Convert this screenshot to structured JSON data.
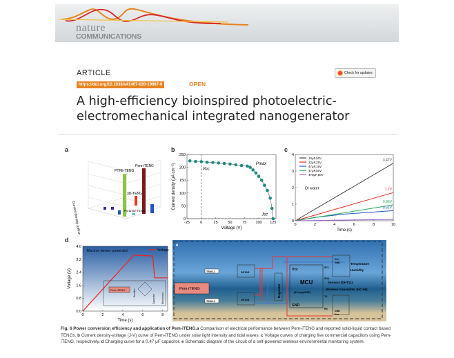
{
  "header": {
    "journal_line1": "nature",
    "journal_line2": "COMMUNICATIONS",
    "colors": {
      "orange": "#e8821e",
      "red": "#d9262c"
    }
  },
  "article": {
    "type": "ARTICLE",
    "doi": "https://doi.org/10.1038/s41467-020-19987-0",
    "access": "OPEN",
    "check_updates": "Check for updates",
    "title_line1": "A high-efficiency bioinspired photoelectric-",
    "title_line2": "electromechanical integrated nanogenerator"
  },
  "figure": {
    "panel_a": {
      "label": "a",
      "ylabel": "Current density (uA/cm²)",
      "bars": [
        {
          "name": "Pem-iTENG",
          "color": "#7a1a1a"
        },
        {
          "name": "PTFE-TENG",
          "color": "#8cc63f"
        },
        {
          "name": "3D-TENG",
          "color": "#ee3322"
        },
        {
          "name": "Pyramid-TENG",
          "color": "#6cc"
        }
      ]
    },
    "panel_d": {
      "label": "d",
      "annotation": "Electron device connected",
      "circuit": {
        "source": "Pem-iTENG",
        "rectifier": "Rectifier",
        "capacitor": "Capacitor",
        "electronics": "Electronics"
      }
    },
    "panel_e": {
      "label": "e",
      "source": "Pem-iTENG",
      "teng1": "TENG-1",
      "teng2": "TENG-2",
      "bridge": "DF10S",
      "regulator": "Regulator",
      "mcu": "MCU",
      "mcu_model": "(ATmega328P)",
      "vcc": "Vcc",
      "gnd": "GND",
      "scl": "SCL",
      "sda": "SDA",
      "tx": "TX",
      "rx": "RX",
      "sensor_vcc": "Vcc",
      "sensor_gnd": "GND",
      "sensors": "Sensors (DHT11)",
      "temperature": "Temperature",
      "humidity": "Humidity",
      "wireless": "Wireless transmitter (HC-06)",
      "tx_gnd": "GND",
      "tx_vcc": "Vcc"
    }
  },
  "chart_data": [
    {
      "panel": "b",
      "type": "scatter",
      "xlabel": "Voltage (V)",
      "ylabel": "Current density (μA cm⁻²)",
      "xlim": [
        -25,
        130
      ],
      "ylim": [
        0,
        250
      ],
      "xticks": [
        -25,
        0,
        25,
        50,
        75,
        100,
        125
      ],
      "yticks": [
        0,
        50,
        100,
        150,
        200,
        250
      ],
      "annotations": [
        "Voc",
        "Pmax",
        "Jsc"
      ],
      "x": [
        -20,
        -10,
        0,
        10,
        20,
        30,
        40,
        50,
        60,
        70,
        80,
        85,
        90,
        95,
        100,
        105,
        110,
        115,
        120,
        123,
        125
      ],
      "y": [
        225,
        223,
        222,
        220,
        219,
        217,
        215,
        213,
        210,
        207,
        205,
        200,
        190,
        178,
        165,
        150,
        130,
        110,
        80,
        40,
        0
      ]
    },
    {
      "panel": "c",
      "type": "line",
      "xlabel": "Time (s)",
      "ylabel": "Voltage (V)",
      "xlim": [
        0,
        10
      ],
      "ylim": [
        0,
        4
      ],
      "xticks": [
        0,
        2,
        4,
        6,
        8,
        10
      ],
      "yticks": [
        0,
        1,
        2,
        3,
        4
      ],
      "annotation": "DI water",
      "series": [
        {
          "name": "10μF,50V",
          "color": "#444444",
          "x": [
            0,
            10
          ],
          "y": [
            0,
            3.47
          ],
          "end_label": "3.47V"
        },
        {
          "name": "22μF,25V",
          "color": "#ee2222",
          "x": [
            0,
            10
          ],
          "y": [
            0,
            1.7
          ],
          "end_label": "1.7V"
        },
        {
          "name": "47μF,16V",
          "color": "#2255bb",
          "x": [
            0,
            2,
            5,
            10
          ],
          "y": [
            0,
            0.2,
            0.4,
            0.61
          ],
          "end_label": "0.61V"
        },
        {
          "name": "47μF,50V",
          "color": "#22aa55",
          "x": [
            0,
            10
          ],
          "y": [
            0,
            0.96
          ],
          "end_label": "0.96V"
        },
        {
          "name": "470μF,50V",
          "color": "#9966cc",
          "x": [
            0,
            10
          ],
          "y": [
            0,
            0.08
          ],
          "end_label": ""
        }
      ]
    },
    {
      "panel": "d",
      "type": "line",
      "xlabel": "Time (s)",
      "ylabel": "Voltage (V)",
      "xlim": [
        0,
        8.5
      ],
      "ylim": [
        0,
        4
      ],
      "xticks": [
        0,
        2,
        4,
        6,
        8
      ],
      "yticks": [
        "0.0",
        "0.8",
        "1.6",
        "2.4",
        "3.2",
        "4.0"
      ],
      "series": [
        {
          "name": "Voltage",
          "color": "#ee2222",
          "x": [
            0,
            5.1,
            7.0,
            7.2,
            8.5
          ],
          "y": [
            0,
            3.45,
            3.4,
            2.05,
            2.05
          ]
        }
      ]
    }
  ],
  "caption": {
    "fig": "Fig. 6 Power conversion efficiency and application of Pem-iTENG.",
    "a": "a",
    "a_text": " Comparison of electrical performance between Pem-iTENG and reported solid-liquid contact based TENGs. ",
    "b": "b",
    "b_text": " Current density-voltage (J-V) curve of Pem-iTENG under solar light intensity and tidal waves. ",
    "c": "c",
    "c_text": " Voltage curves of charging five commercial capacitors using Pem-iTENG, respectively. ",
    "d": "d",
    "d_text": " Charging curve for a 0.47 μF capacitor. ",
    "e": "e",
    "e_text": " Schematic diagram of the circuit of a self-powered wireless environmental monitoring system."
  }
}
